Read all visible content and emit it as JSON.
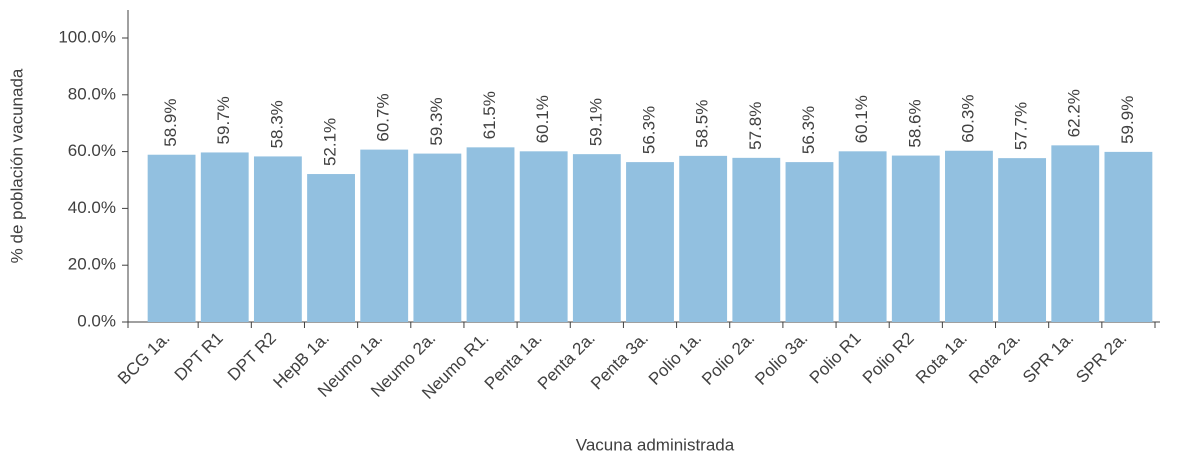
{
  "chart_data": {
    "type": "bar",
    "x_label": "Vacuna administrada",
    "y_label": "% de población vacunada",
    "categories": [
      "BCG 1a.",
      "DPT R1",
      "DPT R2",
      "HepB 1a.",
      "Neumo 1a.",
      "Neumo 2a.",
      "Neumo R1.",
      "Penta 1a.",
      "Penta 2a.",
      "Penta 3a.",
      "Polio 1a.",
      "Polio 2a.",
      "Polio 3a.",
      "Polio R1",
      "Polio R2",
      "Rota 1a.",
      "Rota 2a.",
      "SPR 1a.",
      "SPR 2a."
    ],
    "values": [
      58.9,
      59.7,
      58.3,
      52.1,
      60.7,
      59.3,
      61.5,
      60.1,
      59.1,
      56.3,
      58.5,
      57.8,
      56.3,
      60.1,
      58.6,
      60.3,
      57.7,
      62.2,
      59.9
    ],
    "value_labels": [
      "58.9%",
      "59.7%",
      "58.3%",
      "52.1%",
      "60.7%",
      "59.3%",
      "61.5%",
      "60.1%",
      "59.1%",
      "56.3%",
      "58.5%",
      "57.8%",
      "56.3%",
      "60.1%",
      "58.6%",
      "60.3%",
      "57.7%",
      "62.2%",
      "59.9%"
    ],
    "color": "#92c0e0",
    "ylim": [
      0,
      100
    ],
    "yticks": [
      {
        "value": 0,
        "label": "0.0%"
      },
      {
        "value": 20,
        "label": "20.0%"
      },
      {
        "value": 40,
        "label": "40.0%"
      },
      {
        "value": 60,
        "label": "60.0%"
      },
      {
        "value": 80,
        "label": "80.0%"
      },
      {
        "value": 100,
        "label": "100.0%"
      }
    ],
    "grid": false
  }
}
